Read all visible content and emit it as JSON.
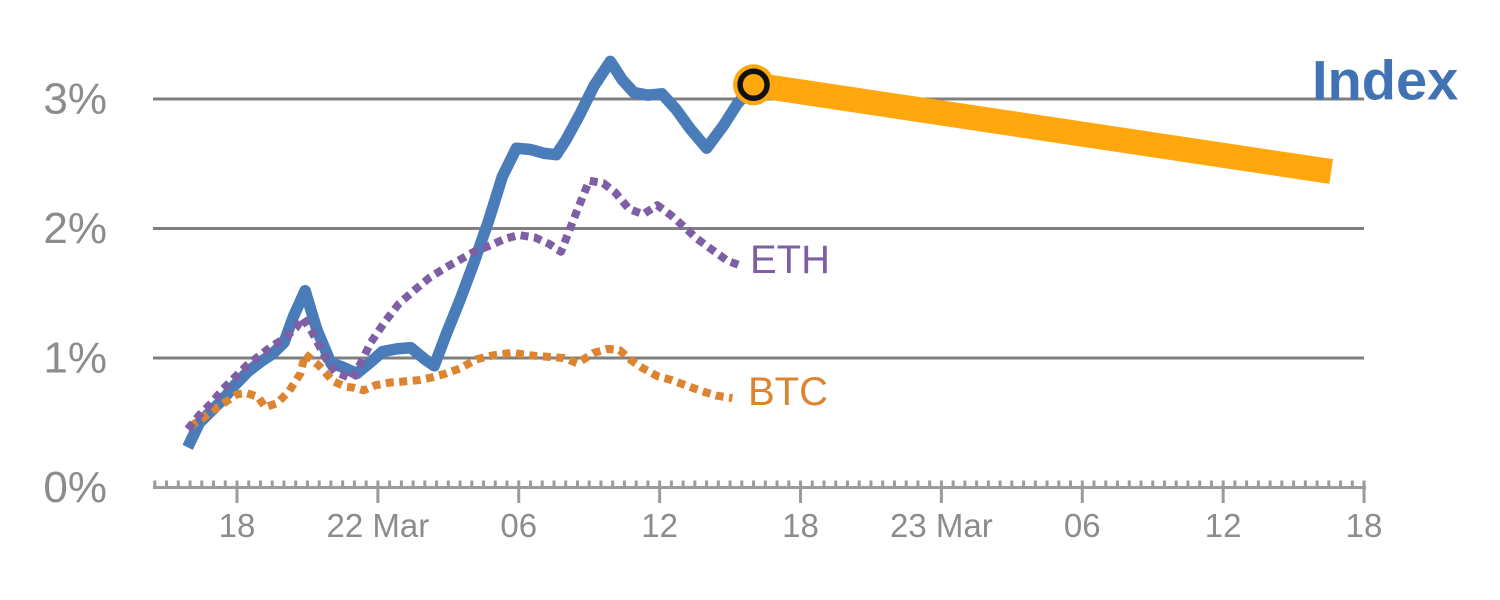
{
  "chart_data": {
    "type": "line",
    "title": "",
    "description": "Cumulative percent performance of a crypto Index vs ETH and BTC over 21-23 March, with a projected Index path",
    "x_axis": {
      "unit": "hours since 21 Mar 18:00",
      "major_ticks": [
        {
          "t": 0,
          "label": "18"
        },
        {
          "t": 6,
          "label": "22 Mar"
        },
        {
          "t": 12,
          "label": "06"
        },
        {
          "t": 18,
          "label": "12"
        },
        {
          "t": 24,
          "label": "18"
        },
        {
          "t": 30,
          "label": "23 Mar"
        },
        {
          "t": 36,
          "label": "06"
        },
        {
          "t": 42,
          "label": "12"
        },
        {
          "t": 48,
          "label": "18"
        }
      ],
      "minor_tick_every_hours": 0.5,
      "range_hours": [
        -3.5,
        48.1
      ]
    },
    "y_axis": {
      "unit": "percent",
      "range": [
        0,
        3.5
      ],
      "gridlines": [
        1,
        2,
        3
      ],
      "ticks": [
        {
          "value": 0,
          "label": "0%"
        },
        {
          "value": 1,
          "label": "1%"
        },
        {
          "value": 2,
          "label": "2%"
        },
        {
          "value": 3,
          "label": "3%"
        }
      ]
    },
    "colors": {
      "index_line": "#4a7cba",
      "index_label": "#4072b4",
      "eth": "#7e5fa5",
      "btc": "#dd8430",
      "projection": "#ffa70d",
      "marker_ring": "#111111",
      "gridline": "#7f7f7f",
      "axis": "#9b9b9b",
      "tick_label": "#8c8c8c"
    },
    "series": [
      {
        "name": "index",
        "label": "Index",
        "style": "solid",
        "points": [
          [
            -2.1,
            0.31
          ],
          [
            -1.6,
            0.5
          ],
          [
            -1.1,
            0.59
          ],
          [
            -0.6,
            0.68
          ],
          [
            -0.1,
            0.79
          ],
          [
            0.5,
            0.9
          ],
          [
            1.0,
            0.97
          ],
          [
            1.5,
            1.03
          ],
          [
            2.0,
            1.12
          ],
          [
            2.4,
            1.32
          ],
          [
            2.9,
            1.52
          ],
          [
            3.4,
            1.22
          ],
          [
            4.0,
            0.96
          ],
          [
            4.5,
            0.93
          ],
          [
            5.1,
            0.88
          ],
          [
            5.7,
            0.97
          ],
          [
            6.2,
            1.05
          ],
          [
            6.8,
            1.07
          ],
          [
            7.4,
            1.08
          ],
          [
            8.0,
            0.99
          ],
          [
            8.4,
            0.94
          ],
          [
            8.9,
            1.18
          ],
          [
            9.5,
            1.45
          ],
          [
            10.1,
            1.74
          ],
          [
            10.7,
            2.05
          ],
          [
            11.3,
            2.4
          ],
          [
            11.9,
            2.62
          ],
          [
            12.5,
            2.61
          ],
          [
            13.1,
            2.58
          ],
          [
            13.6,
            2.57
          ],
          [
            14.0,
            2.68
          ],
          [
            14.6,
            2.88
          ],
          [
            15.2,
            3.1
          ],
          [
            15.9,
            3.29
          ],
          [
            16.4,
            3.15
          ],
          [
            16.9,
            3.05
          ],
          [
            17.5,
            3.03
          ],
          [
            18.1,
            3.04
          ],
          [
            18.7,
            2.92
          ],
          [
            19.3,
            2.77
          ],
          [
            20.0,
            2.62
          ],
          [
            20.7,
            2.79
          ],
          [
            21.3,
            2.96
          ],
          [
            22.0,
            3.11
          ]
        ]
      },
      {
        "name": "eth",
        "label": "ETH",
        "style": "dotted",
        "points": [
          [
            -2.1,
            0.45
          ],
          [
            -1.6,
            0.56
          ],
          [
            -1.1,
            0.65
          ],
          [
            -0.6,
            0.76
          ],
          [
            -0.1,
            0.85
          ],
          [
            0.4,
            0.94
          ],
          [
            0.9,
            1.01
          ],
          [
            1.4,
            1.08
          ],
          [
            2.0,
            1.15
          ],
          [
            2.5,
            1.23
          ],
          [
            2.8,
            1.31
          ],
          [
            3.2,
            1.2
          ],
          [
            3.6,
            1.06
          ],
          [
            3.9,
            0.96
          ],
          [
            4.2,
            0.89
          ],
          [
            4.9,
            0.84
          ],
          [
            5.3,
            0.97
          ],
          [
            5.7,
            1.12
          ],
          [
            6.3,
            1.28
          ],
          [
            6.9,
            1.42
          ],
          [
            7.6,
            1.53
          ],
          [
            8.2,
            1.62
          ],
          [
            8.9,
            1.7
          ],
          [
            9.5,
            1.76
          ],
          [
            10.1,
            1.82
          ],
          [
            10.8,
            1.87
          ],
          [
            11.4,
            1.92
          ],
          [
            12.0,
            1.95
          ],
          [
            12.7,
            1.93
          ],
          [
            13.3,
            1.88
          ],
          [
            13.8,
            1.82
          ],
          [
            14.4,
            2.1
          ],
          [
            15.0,
            2.37
          ],
          [
            15.6,
            2.35
          ],
          [
            16.1,
            2.28
          ],
          [
            16.7,
            2.15
          ],
          [
            17.3,
            2.11
          ],
          [
            17.9,
            2.18
          ],
          [
            18.5,
            2.1
          ],
          [
            19.0,
            2.02
          ],
          [
            19.6,
            1.92
          ],
          [
            20.2,
            1.84
          ],
          [
            20.9,
            1.75
          ],
          [
            21.5,
            1.71
          ]
        ]
      },
      {
        "name": "btc",
        "label": "BTC",
        "style": "dotted",
        "points": [
          [
            -2.0,
            0.47
          ],
          [
            -1.5,
            0.53
          ],
          [
            -1.0,
            0.6
          ],
          [
            -0.4,
            0.67
          ],
          [
            0.0,
            0.72
          ],
          [
            0.4,
            0.73
          ],
          [
            0.9,
            0.7
          ],
          [
            1.2,
            0.62
          ],
          [
            1.7,
            0.65
          ],
          [
            2.2,
            0.74
          ],
          [
            2.7,
            0.88
          ],
          [
            2.9,
            1.03
          ],
          [
            3.5,
            0.94
          ],
          [
            3.8,
            0.88
          ],
          [
            4.1,
            0.82
          ],
          [
            4.6,
            0.78
          ],
          [
            5.0,
            0.77
          ],
          [
            5.4,
            0.75
          ],
          [
            5.9,
            0.79
          ],
          [
            6.5,
            0.81
          ],
          [
            7.2,
            0.82
          ],
          [
            7.8,
            0.83
          ],
          [
            8.3,
            0.85
          ],
          [
            8.9,
            0.88
          ],
          [
            9.5,
            0.92
          ],
          [
            10.2,
            0.99
          ],
          [
            10.9,
            1.02
          ],
          [
            11.7,
            1.04
          ],
          [
            12.5,
            1.02
          ],
          [
            13.2,
            1.01
          ],
          [
            13.9,
            1.0
          ],
          [
            14.5,
            0.96
          ],
          [
            15.2,
            1.04
          ],
          [
            15.8,
            1.07
          ],
          [
            16.3,
            1.06
          ],
          [
            16.8,
            0.98
          ],
          [
            17.3,
            0.92
          ],
          [
            17.9,
            0.86
          ],
          [
            18.5,
            0.83
          ],
          [
            19.1,
            0.79
          ],
          [
            19.7,
            0.75
          ],
          [
            20.4,
            0.71
          ],
          [
            21.1,
            0.69
          ]
        ]
      }
    ],
    "projection": {
      "name": "index-projection",
      "belongs_to": "index",
      "points": [
        [
          22.0,
          3.11
        ],
        [
          46.6,
          2.44
        ]
      ]
    },
    "marker": {
      "name": "current-value-marker",
      "t": 22.0,
      "value": 3.11,
      "shape": "orange disc with black ring"
    },
    "legend_position": "inline labels at line ends"
  }
}
